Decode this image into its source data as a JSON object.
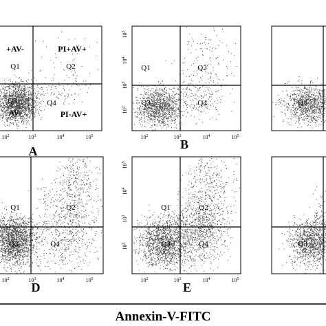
{
  "panels": [
    {
      "letter": "A",
      "labels": [
        "+AV-",
        "PI+AV+",
        "Q1",
        "Q2",
        "Q3",
        "Q4",
        "AV-",
        "PI-AV+"
      ],
      "xticks": [
        {
          "base": "10",
          "exp": "2"
        },
        {
          "base": "10",
          "exp": "3"
        },
        {
          "base": "10",
          "exp": "4"
        },
        {
          "base": "10",
          "exp": "5"
        }
      ]
    },
    {
      "letter": "B",
      "labels": [
        "Q1",
        "Q2",
        "Q3",
        "Q4"
      ],
      "xticks": [
        {
          "base": "10",
          "exp": "2"
        },
        {
          "base": "10",
          "exp": "3"
        },
        {
          "base": "10",
          "exp": "4"
        },
        {
          "base": "10",
          "exp": "5"
        }
      ],
      "yticks": [
        {
          "base": "10",
          "exp": "5"
        },
        {
          "base": "10",
          "exp": "4"
        },
        {
          "base": "10",
          "exp": "3"
        },
        {
          "base": "10",
          "exp": "2"
        }
      ]
    },
    {
      "labels": [
        "Q3"
      ]
    },
    {
      "letter": "D",
      "labels": [
        "Q1",
        "Q2",
        "Q3",
        "Q4"
      ],
      "xticks": [
        {
          "base": "10",
          "exp": "2"
        },
        {
          "base": "10",
          "exp": "3"
        },
        {
          "base": "10",
          "exp": "4"
        },
        {
          "base": "10",
          "exp": "5"
        }
      ]
    },
    {
      "letter": "E",
      "labels": [
        "Q1",
        "Q2",
        "Q3",
        "Q4"
      ],
      "xticks": [
        {
          "base": "10",
          "exp": "2"
        },
        {
          "base": "10",
          "exp": "3"
        },
        {
          "base": "10",
          "exp": "4"
        },
        {
          "base": "10",
          "exp": "5"
        }
      ],
      "yticks": [
        {
          "base": "10",
          "exp": "5"
        },
        {
          "base": "10",
          "exp": "4"
        },
        {
          "base": "10",
          "exp": "3"
        },
        {
          "base": "10",
          "exp": "2"
        }
      ]
    },
    {
      "labels": [
        "Q3"
      ]
    }
  ],
  "axis_title": "Annexin-V-FITC"
}
